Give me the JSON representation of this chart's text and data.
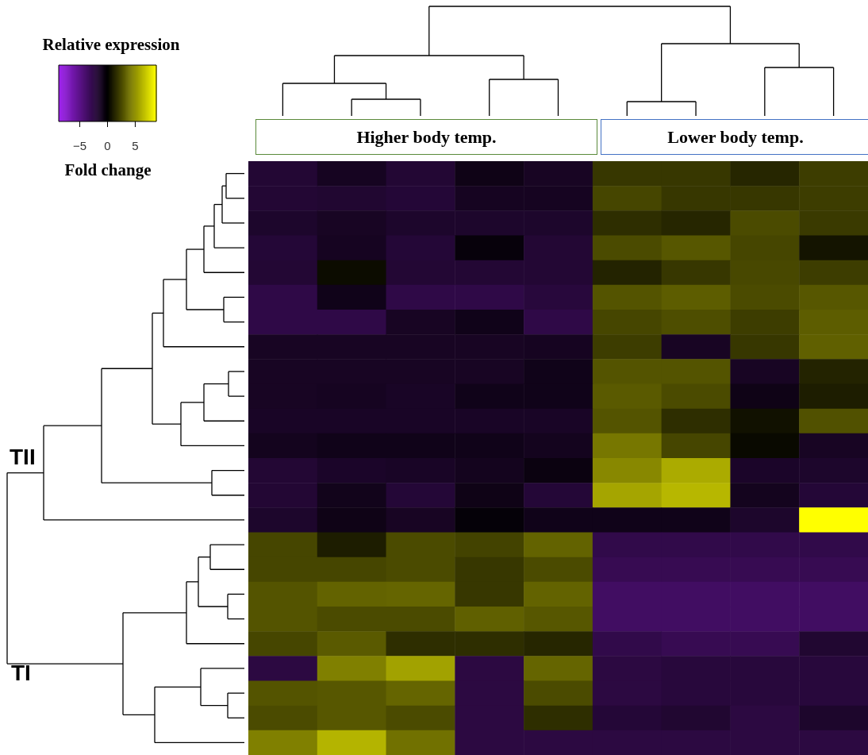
{
  "chart_data": {
    "type": "heatmap",
    "legend_title": "Relative expression",
    "clabel": "Fold change",
    "clim": [
      -8.8,
      8.8
    ],
    "cticks": [
      -5,
      0,
      5
    ],
    "annotations": [
      "Higher body temp.",
      "Lower body temp.",
      "TII",
      "TI"
    ],
    "categories": [
      null,
      null,
      null,
      null,
      null,
      null,
      null,
      null,
      null
    ],
    "y_categories": [
      null,
      null,
      null,
      null,
      null,
      null,
      null,
      null,
      null,
      null,
      null,
      null,
      null,
      null,
      null,
      null,
      null,
      null,
      null,
      null,
      null,
      null,
      null,
      null
    ],
    "cells": [
      [
        -1.9,
        -1.2,
        -1.9,
        -0.8,
        -1.3,
        1.9,
        1.9,
        1.3,
        2.1
      ],
      [
        -1.9,
        -1.8,
        -2.0,
        -1.2,
        -1.2,
        2.4,
        1.9,
        1.9,
        2.1
      ],
      [
        -1.6,
        -1.3,
        -1.6,
        -1.6,
        -1.6,
        1.6,
        1.3,
        2.6,
        2.0
      ],
      [
        -2.0,
        -1.2,
        -2.0,
        -0.4,
        -1.9,
        2.6,
        3.0,
        2.4,
        0.7
      ],
      [
        -1.9,
        0.4,
        -1.9,
        -1.9,
        -1.9,
        1.2,
        1.9,
        2.5,
        2.1
      ],
      [
        -2.6,
        -0.9,
        -2.6,
        -2.6,
        -2.2,
        2.9,
        3.2,
        2.6,
        3.0
      ],
      [
        -2.6,
        -2.6,
        -1.3,
        -0.9,
        -2.6,
        2.4,
        2.7,
        2.1,
        3.2
      ],
      [
        -1.3,
        -1.3,
        -1.3,
        -1.3,
        -1.2,
        2.1,
        -1.3,
        1.9,
        3.3
      ],
      [
        -1.3,
        -1.3,
        -1.3,
        -1.3,
        -0.9,
        2.9,
        2.9,
        -1.3,
        1.2
      ],
      [
        -1.3,
        -1.2,
        -1.4,
        -0.9,
        -0.9,
        3.1,
        2.6,
        -0.8,
        1.0
      ],
      [
        -1.4,
        -1.4,
        -1.4,
        -1.4,
        -1.4,
        2.9,
        1.6,
        0.6,
        2.8
      ],
      [
        -1.1,
        -0.9,
        -0.9,
        -0.9,
        -1.1,
        4.1,
        2.4,
        0.3,
        -1.3
      ],
      [
        -1.9,
        -1.5,
        -1.4,
        -1.1,
        -0.6,
        4.7,
        5.9,
        -1.5,
        -1.6
      ],
      [
        -1.9,
        -1.0,
        -2.0,
        -0.8,
        -2.0,
        5.7,
        6.3,
        -1.1,
        -2.0
      ],
      [
        -1.6,
        -0.8,
        -1.3,
        -0.3,
        -0.9,
        -0.9,
        -0.9,
        -1.6,
        8.8
      ],
      [
        2.4,
        1.0,
        2.6,
        2.3,
        3.4,
        -2.7,
        -2.7,
        -2.7,
        -2.7
      ],
      [
        2.4,
        2.4,
        2.6,
        1.9,
        2.6,
        -3.0,
        -3.0,
        -3.0,
        -3.0
      ],
      [
        2.9,
        3.4,
        3.5,
        1.9,
        3.4,
        -3.6,
        -3.6,
        -3.6,
        -3.6
      ],
      [
        2.9,
        2.6,
        2.6,
        3.3,
        3.0,
        -3.6,
        -3.6,
        -3.6,
        -3.6
      ],
      [
        2.4,
        3.1,
        1.6,
        1.6,
        1.3,
        -2.7,
        -3.0,
        -3.0,
        -1.8
      ],
      [
        -2.4,
        4.4,
        5.6,
        -2.4,
        3.5,
        -2.4,
        -2.2,
        -2.2,
        -2.2
      ],
      [
        2.9,
        3.0,
        3.5,
        -2.4,
        2.6,
        -2.4,
        -2.2,
        -2.2,
        -2.2
      ],
      [
        2.6,
        3.0,
        2.6,
        -2.4,
        1.6,
        -2.0,
        -1.8,
        -2.4,
        -1.6
      ],
      [
        4.4,
        6.2,
        3.9,
        -2.4,
        -2.4,
        -2.4,
        -2.4,
        -2.4,
        -2.4
      ]
    ]
  }
}
